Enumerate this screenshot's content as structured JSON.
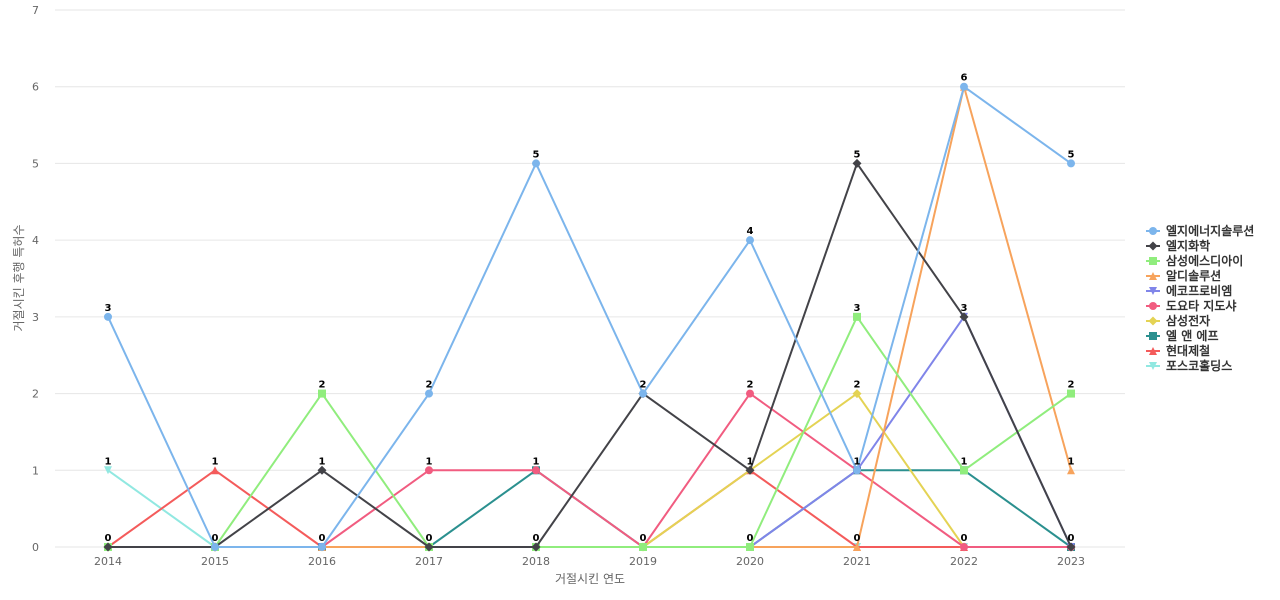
{
  "chart_data": {
    "type": "line",
    "xlabel": "거절시킨 연도",
    "ylabel": "거절시킨 후행 특허수",
    "ylim": [
      0,
      7
    ],
    "yticks": [
      0,
      1,
      2,
      3,
      4,
      5,
      6,
      7
    ],
    "grid": true,
    "legend_position": "right",
    "categories": [
      "2014",
      "2015",
      "2016",
      "2017",
      "2018",
      "2019",
      "2020",
      "2021",
      "2022",
      "2023"
    ],
    "series": [
      {
        "name": "엘지에너지솔루션",
        "color": "#7cb5ec",
        "marker": "circle",
        "values": [
          3,
          0,
          0,
          2,
          5,
          2,
          4,
          1,
          6,
          5
        ]
      },
      {
        "name": "엘지화학",
        "color": "#434348",
        "marker": "diamond",
        "values": [
          0,
          0,
          1,
          0,
          0,
          2,
          1,
          5,
          3,
          0
        ]
      },
      {
        "name": "삼성에스디아이",
        "color": "#90ed7d",
        "marker": "square",
        "values": [
          0,
          0,
          2,
          0,
          0,
          0,
          0,
          3,
          1,
          2
        ]
      },
      {
        "name": "알디솔루션",
        "color": "#f7a35c",
        "marker": "triangle",
        "values": [
          0,
          0,
          0,
          0,
          0,
          0,
          0,
          0,
          6,
          1
        ]
      },
      {
        "name": "에코프로비엠",
        "color": "#8085e9",
        "marker": "triangle-down",
        "values": [
          0,
          0,
          0,
          0,
          0,
          0,
          0,
          1,
          3,
          0
        ]
      },
      {
        "name": "도요타 지도샤",
        "color": "#f15c80",
        "marker": "circle",
        "values": [
          0,
          0,
          0,
          1,
          1,
          0,
          2,
          1,
          0,
          0
        ]
      },
      {
        "name": "삼성전자",
        "color": "#e4d354",
        "marker": "diamond",
        "values": [
          0,
          0,
          0,
          0,
          0,
          0,
          1,
          2,
          0,
          0
        ]
      },
      {
        "name": "엘 앤 에프",
        "color": "#2b908f",
        "marker": "square",
        "values": [
          0,
          0,
          0,
          0,
          1,
          0,
          0,
          1,
          1,
          0
        ]
      },
      {
        "name": "현대제철",
        "color": "#f45b5b",
        "marker": "triangle",
        "values": [
          0,
          1,
          0,
          0,
          0,
          0,
          1,
          0,
          0,
          0
        ]
      },
      {
        "name": "포스코홀딩스",
        "color": "#91e8e1",
        "marker": "triangle-down",
        "values": [
          1,
          0,
          0,
          0,
          0,
          0,
          0,
          0,
          0,
          0
        ]
      }
    ],
    "data_labels": [
      {
        "category": "2014",
        "value": 3
      },
      {
        "category": "2014",
        "value": 1
      },
      {
        "category": "2014",
        "value": 0
      },
      {
        "category": "2015",
        "value": 1
      },
      {
        "category": "2015",
        "value": 0
      },
      {
        "category": "2016",
        "value": 2
      },
      {
        "category": "2016",
        "value": 1
      },
      {
        "category": "2016",
        "value": 0
      },
      {
        "category": "2017",
        "value": 2
      },
      {
        "category": "2017",
        "value": 1
      },
      {
        "category": "2017",
        "value": 0
      },
      {
        "category": "2018",
        "value": 5
      },
      {
        "category": "2018",
        "value": 1
      },
      {
        "category": "2018",
        "value": 0
      },
      {
        "category": "2019",
        "value": 2
      },
      {
        "category": "2019",
        "value": 0
      },
      {
        "category": "2020",
        "value": 4
      },
      {
        "category": "2020",
        "value": 2
      },
      {
        "category": "2020",
        "value": 1
      },
      {
        "category": "2020",
        "value": 0
      },
      {
        "category": "2021",
        "value": 5
      },
      {
        "category": "2021",
        "value": 3
      },
      {
        "category": "2021",
        "value": 2
      },
      {
        "category": "2021",
        "value": 1
      },
      {
        "category": "2021",
        "value": 0
      },
      {
        "category": "2022",
        "value": 6
      },
      {
        "category": "2022",
        "value": 3
      },
      {
        "category": "2022",
        "value": 1
      },
      {
        "category": "2022",
        "value": 0
      },
      {
        "category": "2023",
        "value": 5
      },
      {
        "category": "2023",
        "value": 2
      },
      {
        "category": "2023",
        "value": 1
      },
      {
        "category": "2023",
        "value": 0
      }
    ]
  }
}
